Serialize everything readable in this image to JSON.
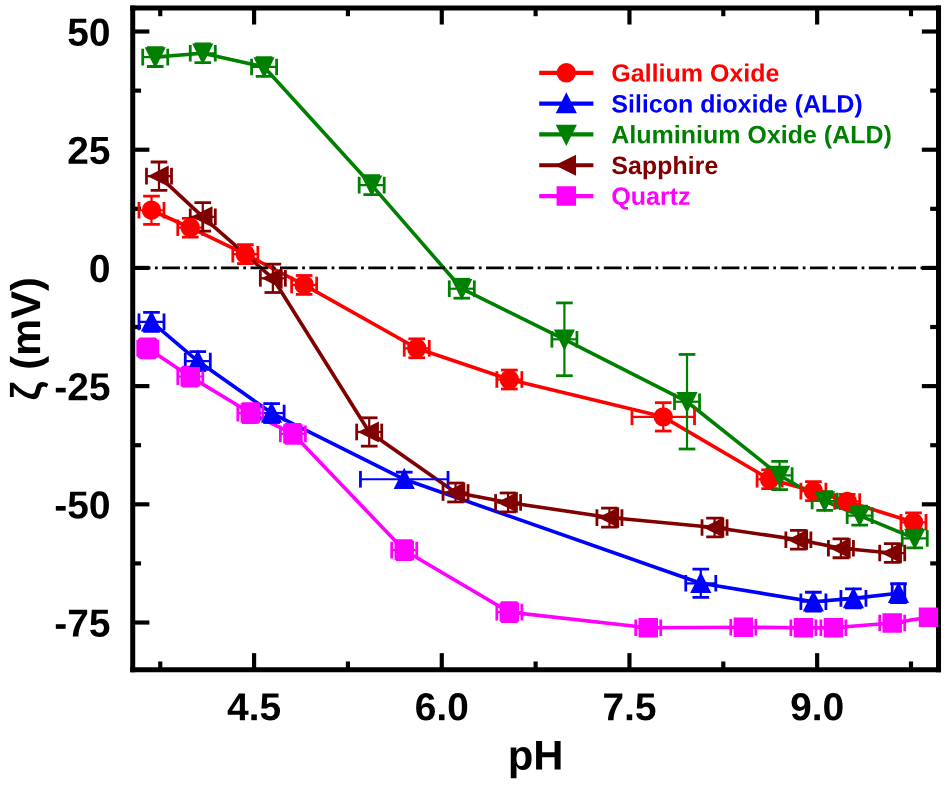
{
  "chart_data": {
    "type": "line",
    "xlabel": "pH",
    "ylabel": "ζ (mV)",
    "xlim": [
      3.53,
      9.97
    ],
    "xticks": [
      4.5,
      {
        "value": 6,
        "label": "6.0"
      },
      7.5,
      {
        "value": 9,
        "label": "9.0"
      }
    ],
    "ylim": [
      -85,
      55
    ],
    "yticks": [
      50,
      25,
      0,
      -25,
      -50,
      -75
    ],
    "grid": false,
    "legend": "top right",
    "line_style": "solid",
    "ref_lines": [
      {
        "axis": "y",
        "value": 0,
        "color": "#000000",
        "line_style": "dashdot"
      }
    ],
    "series": [
      {
        "name": "Gallium Oxide",
        "color": "#ff0000",
        "marker": "circle",
        "x": [
          3.68,
          3.99,
          4.43,
          4.9,
          5.8,
          6.54,
          7.77,
          8.62,
          8.97,
          9.24,
          9.77
        ],
        "values": [
          12.2,
          8.5,
          2.9,
          -3.6,
          -17,
          -23.6,
          -31.5,
          -44.7,
          -47.2,
          -49.4,
          -53.8
        ],
        "errors": [
          3,
          2,
          2,
          2,
          2,
          2,
          3,
          2,
          2,
          1.5,
          2
        ],
        "xerrors": [
          0.1,
          0.1,
          0.1,
          0.1,
          0.1,
          0.1,
          0.25,
          0.1,
          0.1,
          0.1,
          0.1
        ]
      },
      {
        "name": "Silicon dioxide (ALD)",
        "color": "#0000ff",
        "marker": "triangle",
        "x": [
          3.68,
          4.05,
          4.64,
          5.7,
          8.07,
          8.97,
          9.29,
          9.65
        ],
        "values": [
          -11.4,
          -19.7,
          -30.7,
          -44.7,
          -66.7,
          -70.6,
          -69.9,
          -68.8
        ],
        "errors": [
          2,
          2,
          2,
          1.5,
          3,
          2,
          2,
          2
        ],
        "xerrors": [
          0.1,
          0.1,
          0.1,
          0.35,
          0.12,
          0.1,
          0.1,
          0.05
        ]
      },
      {
        "name": "Aluminium Oxide (ALD)",
        "color": "#008000",
        "marker": "triangle_down",
        "x": [
          3.71,
          4.09,
          4.58,
          5.44,
          6.16,
          6.98,
          7.96,
          8.7,
          9.06,
          9.34,
          9.78
        ],
        "values": [
          44.6,
          45.4,
          42.5,
          17.5,
          -4.4,
          -15.1,
          -28.3,
          -43.9,
          -49.3,
          -52.4,
          -57.2
        ],
        "errors": [
          2,
          2,
          2,
          2,
          2,
          7.7,
          10,
          3,
          2,
          2,
          2
        ],
        "xerrors": [
          0.1,
          0.1,
          0.1,
          0.1,
          0.1,
          0.1,
          0.1,
          0.1,
          0.1,
          0.1,
          0.1
        ]
      },
      {
        "name": "Sapphire",
        "color": "#800000",
        "marker": "triangle_left",
        "x": [
          3.74,
          4.09,
          4.65,
          5.42,
          6.11,
          6.53,
          7.34,
          8.18,
          8.85,
          9.19,
          9.6
        ],
        "values": [
          19.4,
          10.8,
          -2.2,
          -34.7,
          -47.5,
          -49.6,
          -52.8,
          -54.9,
          -57.5,
          -59.3,
          -60.3
        ],
        "errors": [
          3,
          3,
          3,
          3,
          2,
          2,
          2,
          2,
          2,
          2,
          2
        ],
        "xerrors": [
          0.1,
          0.1,
          0.1,
          0.1,
          0.1,
          0.1,
          0.1,
          0.1,
          0.1,
          0.1,
          0.1
        ]
      },
      {
        "name": "Quartz",
        "color": "#ff00ff",
        "marker": "square",
        "x": [
          3.65,
          3.99,
          4.47,
          4.81,
          5.7,
          6.54,
          7.65,
          8.41,
          8.89,
          9.13,
          9.6,
          9.89
        ],
        "values": [
          -17,
          -23,
          -30.7,
          -35.1,
          -59.7,
          -72.8,
          -76.1,
          -76,
          -76.1,
          -76.1,
          -75.1,
          -73.9
        ],
        "errors": [
          2,
          2,
          2,
          2,
          2,
          2,
          1.5,
          1,
          1,
          1,
          1.5,
          1.5
        ],
        "xerrors": [
          0.08,
          0.1,
          0.1,
          0.1,
          0.1,
          0.1,
          0.1,
          0.1,
          0.1,
          0.1,
          0.1,
          0.05
        ]
      }
    ]
  }
}
